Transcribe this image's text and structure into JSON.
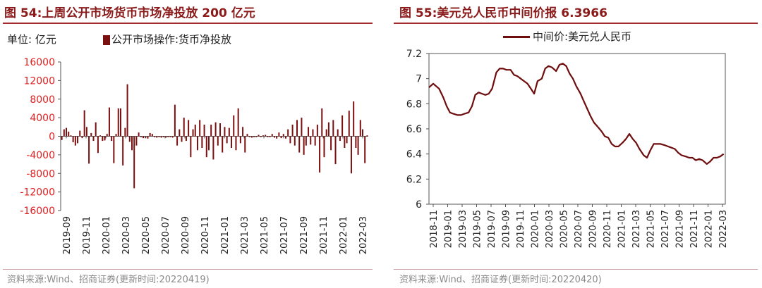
{
  "left": {
    "title": "图 54:上周公开市场货币市场净投放 200 亿元",
    "source": "资料来源:Wind、招商证券(更新时间:20220419)",
    "chart_data": {
      "type": "bar",
      "unit_label": "单位: 亿元",
      "legend": "公开市场操作:货币净投放",
      "color": "#7b1010",
      "ylim": [
        -16000,
        16000
      ],
      "yticks": [
        16000,
        12000,
        8000,
        4000,
        0,
        -4000,
        -8000,
        -12000,
        -16000
      ],
      "ytick_labels": [
        "16000",
        "12000",
        "8000",
        "4000",
        "0",
        "-4000",
        "-8000",
        "-12000",
        "-16000"
      ],
      "ytick_color": "#e02020",
      "xtick_labels": [
        "2019-09",
        "2019-11",
        "2020-01",
        "2020-03",
        "2020-05",
        "2020-07",
        "2020-09",
        "2020-11",
        "2021-01",
        "2021-03",
        "2021-05",
        "2021-07",
        "2021-09",
        "2021-11",
        "2022-01",
        "2022-03"
      ],
      "values": [
        -800,
        1500,
        1800,
        1000,
        200,
        -1300,
        -2000,
        -1500,
        1200,
        -400,
        5600,
        2000,
        -5900,
        700,
        -1000,
        3000,
        -3600,
        200,
        -1000,
        -900,
        500,
        6200,
        -1000,
        -5800,
        500,
        6000,
        6000,
        -6300,
        1800,
        11200,
        -1200,
        -3000,
        -11200,
        -2000,
        800,
        -200,
        -400,
        -400,
        -500,
        700,
        500,
        -200,
        -300,
        -200,
        -300,
        -200,
        -300,
        -200,
        -200,
        -300,
        6800,
        -2000,
        1500,
        -1200,
        4000,
        -1000,
        3500,
        -4500,
        1500,
        2500,
        -3000,
        3500,
        -2500,
        2500,
        -4500,
        -3000,
        2500,
        -5000,
        3000,
        -2000,
        2800,
        -3500,
        2000,
        -1500,
        1800,
        -2500,
        4500,
        -3000,
        6000,
        -1500,
        2000,
        -3500,
        500,
        -200,
        -300,
        -200,
        -200,
        300,
        -200,
        200,
        300,
        -200,
        -200,
        500,
        -300,
        -500,
        800,
        -400,
        500,
        -500,
        1500,
        -1500,
        2500,
        -2000,
        3500,
        -3500,
        4000,
        -4000,
        -2000,
        2000,
        -1800,
        1500,
        -2000,
        2500,
        -7800,
        6000,
        -4500,
        1500,
        3000,
        -3000,
        3500,
        -6000,
        1500,
        -1000,
        4500,
        -2500,
        -1500,
        5500,
        -8000,
        7500,
        -2500,
        -4000,
        3500,
        1500,
        -5800,
        200
      ]
    }
  },
  "right": {
    "title": "图 55:美元兑人民币中间价报 6.3966",
    "source": "资料来源:Wind、招商证券(更新时间:20220420)",
    "chart_data": {
      "type": "line",
      "series": [
        {
          "name": "中间价:美元兑人民币",
          "color": "#6e0d0d"
        }
      ],
      "ylim": [
        6,
        7.2
      ],
      "yticks": [
        7.2,
        7,
        6.8,
        6.6,
        6.4,
        6.2,
        6
      ],
      "ytick_labels": [
        "7.2",
        "7",
        "6.8",
        "6.6",
        "6.4",
        "6.2",
        "6"
      ],
      "xtick_labels": [
        "2018-11",
        "2019-01",
        "2019-03",
        "2019-05",
        "2019-07",
        "2019-09",
        "2019-11",
        "2020-01",
        "2020-03",
        "2020-05",
        "2020-07",
        "2020-09",
        "2020-11",
        "2021-01",
        "2021-03",
        "2021-05",
        "2021-07",
        "2021-09",
        "2021-11",
        "2022-01",
        "2022-03"
      ],
      "x_domain": [
        2018.83,
        2022.35
      ],
      "points": [
        [
          2018.83,
          6.93
        ],
        [
          2018.88,
          6.96
        ],
        [
          2018.95,
          6.92
        ],
        [
          2019.0,
          6.85
        ],
        [
          2019.04,
          6.78
        ],
        [
          2019.08,
          6.73
        ],
        [
          2019.12,
          6.72
        ],
        [
          2019.17,
          6.71
        ],
        [
          2019.21,
          6.71
        ],
        [
          2019.25,
          6.72
        ],
        [
          2019.3,
          6.73
        ],
        [
          2019.34,
          6.78
        ],
        [
          2019.38,
          6.87
        ],
        [
          2019.42,
          6.89
        ],
        [
          2019.46,
          6.88
        ],
        [
          2019.5,
          6.87
        ],
        [
          2019.54,
          6.88
        ],
        [
          2019.58,
          6.92
        ],
        [
          2019.63,
          7.05
        ],
        [
          2019.67,
          7.08
        ],
        [
          2019.71,
          7.08
        ],
        [
          2019.75,
          7.07
        ],
        [
          2019.8,
          7.07
        ],
        [
          2019.84,
          7.03
        ],
        [
          2019.88,
          7.02
        ],
        [
          2019.92,
          7.0
        ],
        [
          2019.96,
          6.98
        ],
        [
          2020.0,
          6.96
        ],
        [
          2020.04,
          6.92
        ],
        [
          2020.08,
          6.88
        ],
        [
          2020.12,
          6.98
        ],
        [
          2020.17,
          7.0
        ],
        [
          2020.21,
          7.08
        ],
        [
          2020.25,
          7.1
        ],
        [
          2020.29,
          7.09
        ],
        [
          2020.34,
          7.06
        ],
        [
          2020.38,
          7.11
        ],
        [
          2020.42,
          7.12
        ],
        [
          2020.46,
          7.1
        ],
        [
          2020.5,
          7.04
        ],
        [
          2020.54,
          7.0
        ],
        [
          2020.58,
          6.94
        ],
        [
          2020.63,
          6.88
        ],
        [
          2020.67,
          6.82
        ],
        [
          2020.71,
          6.76
        ],
        [
          2020.75,
          6.7
        ],
        [
          2020.79,
          6.65
        ],
        [
          2020.83,
          6.62
        ],
        [
          2020.88,
          6.58
        ],
        [
          2020.92,
          6.54
        ],
        [
          2020.96,
          6.53
        ],
        [
          2021.0,
          6.48
        ],
        [
          2021.04,
          6.46
        ],
        [
          2021.08,
          6.46
        ],
        [
          2021.13,
          6.49
        ],
        [
          2021.17,
          6.52
        ],
        [
          2021.21,
          6.56
        ],
        [
          2021.25,
          6.52
        ],
        [
          2021.29,
          6.49
        ],
        [
          2021.33,
          6.44
        ],
        [
          2021.38,
          6.39
        ],
        [
          2021.42,
          6.37
        ],
        [
          2021.46,
          6.43
        ],
        [
          2021.5,
          6.48
        ],
        [
          2021.54,
          6.48
        ],
        [
          2021.58,
          6.48
        ],
        [
          2021.63,
          6.47
        ],
        [
          2021.67,
          6.46
        ],
        [
          2021.71,
          6.45
        ],
        [
          2021.75,
          6.44
        ],
        [
          2021.79,
          6.41
        ],
        [
          2021.83,
          6.39
        ],
        [
          2021.88,
          6.38
        ],
        [
          2021.92,
          6.37
        ],
        [
          2021.96,
          6.37
        ],
        [
          2022.0,
          6.35
        ],
        [
          2022.04,
          6.36
        ],
        [
          2022.08,
          6.35
        ],
        [
          2022.13,
          6.32
        ],
        [
          2022.17,
          6.34
        ],
        [
          2022.21,
          6.37
        ],
        [
          2022.25,
          6.37
        ],
        [
          2022.29,
          6.38
        ],
        [
          2022.33,
          6.4
        ]
      ]
    }
  }
}
